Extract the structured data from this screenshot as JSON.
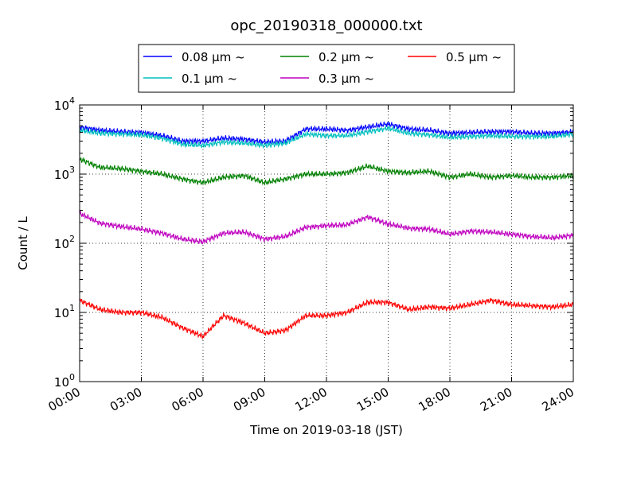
{
  "chart_data": {
    "type": "line",
    "title": "opc_20190318_000000.txt",
    "xlabel": "Time on 2019-03-18 (JST)",
    "ylabel": "Count / L",
    "y_scale": "log",
    "xlim": [
      "00:00",
      "24:00"
    ],
    "ylim": [
      1,
      10000
    ],
    "x_ticks": [
      "00:00",
      "03:00",
      "06:00",
      "09:00",
      "12:00",
      "15:00",
      "18:00",
      "21:00",
      "24:00"
    ],
    "y_ticks": [
      {
        "base": "10",
        "exp": "0"
      },
      {
        "base": "10",
        "exp": "1"
      },
      {
        "base": "10",
        "exp": "2"
      },
      {
        "base": "10",
        "exp": "3"
      },
      {
        "base": "10",
        "exp": "4"
      }
    ],
    "grid": true,
    "legend_position": "top-center",
    "x": [
      "00:00",
      "01:00",
      "02:00",
      "03:00",
      "04:00",
      "05:00",
      "06:00",
      "07:00",
      "08:00",
      "09:00",
      "10:00",
      "11:00",
      "12:00",
      "13:00",
      "14:00",
      "15:00",
      "16:00",
      "17:00",
      "18:00",
      "19:00",
      "20:00",
      "21:00",
      "22:00",
      "23:00",
      "24:00"
    ],
    "series": [
      {
        "name": "0.08 μm ~",
        "color": "#0000ff",
        "values": [
          4800,
          4300,
          4100,
          4000,
          3600,
          3000,
          3000,
          3300,
          3200,
          2900,
          3000,
          4500,
          4500,
          4300,
          4800,
          5300,
          4500,
          4300,
          3900,
          4000,
          4100,
          4100,
          3900,
          3900,
          4100
        ]
      },
      {
        "name": "0.1 μm ~",
        "color": "#00bfbf",
        "values": [
          4300,
          3900,
          3800,
          3700,
          3300,
          2700,
          2600,
          2900,
          2800,
          2600,
          2800,
          3800,
          3600,
          3600,
          4100,
          4600,
          3900,
          3700,
          3400,
          3500,
          3600,
          3500,
          3500,
          3500,
          3800
        ]
      },
      {
        "name": "0.2 μm ~",
        "color": "#008000",
        "values": [
          1650,
          1250,
          1200,
          1100,
          1000,
          850,
          750,
          900,
          950,
          750,
          850,
          1000,
          1000,
          1050,
          1300,
          1100,
          1050,
          1100,
          900,
          1000,
          900,
          950,
          900,
          900,
          950
        ]
      },
      {
        "name": "0.3 μm ~",
        "color": "#bf00bf",
        "values": [
          270,
          195,
          175,
          160,
          140,
          115,
          105,
          140,
          145,
          115,
          125,
          170,
          180,
          185,
          240,
          190,
          165,
          160,
          135,
          150,
          145,
          135,
          125,
          120,
          130
        ]
      },
      {
        "name": "0.5 μm ~",
        "color": "#ff0000",
        "values": [
          15,
          11,
          10,
          10,
          8.5,
          6,
          4.5,
          9,
          7,
          5,
          5.5,
          9,
          9,
          10,
          14,
          14,
          11,
          12,
          11.5,
          13,
          15,
          13,
          12.5,
          12,
          13
        ]
      }
    ]
  }
}
